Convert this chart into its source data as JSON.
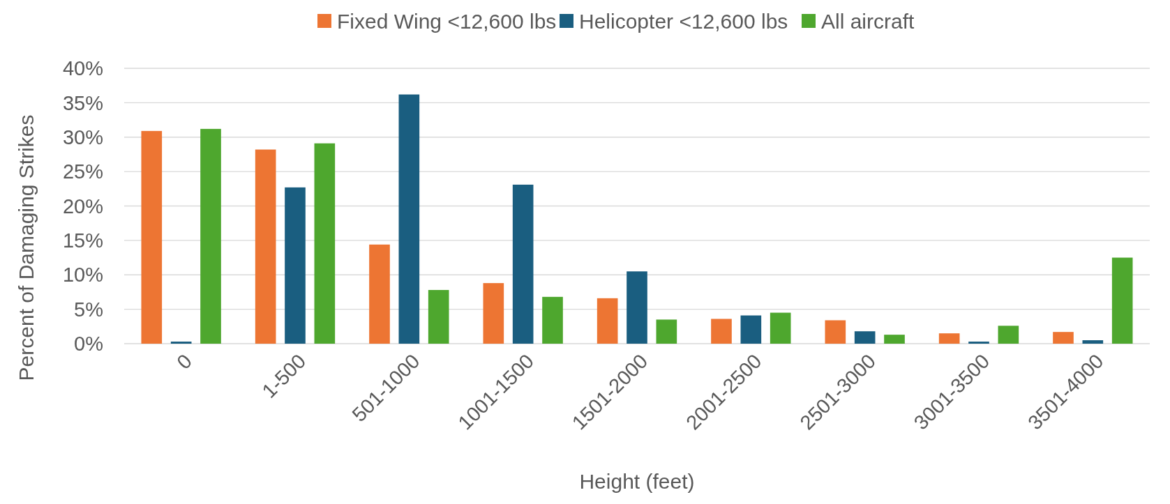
{
  "chart_data": {
    "type": "bar",
    "xlabel": "Height (feet)",
    "ylabel": "Percent of Damaging Strikes",
    "categories": [
      "0",
      "1-500",
      "501-1000",
      "1001-1500",
      "1501-2000",
      "2001-2500",
      "2501-3000",
      "3001-3500",
      "3501-4000"
    ],
    "series": [
      {
        "name": "Fixed Wing <12,600 lbs",
        "color": "#ed7533",
        "values": [
          30.9,
          28.2,
          14.4,
          8.8,
          6.6,
          3.6,
          3.4,
          1.5,
          1.7
        ]
      },
      {
        "name": "Helicopter <12,600 lbs",
        "color": "#1a5e80",
        "values": [
          0.3,
          22.7,
          36.2,
          23.1,
          10.5,
          4.1,
          1.8,
          0.3,
          0.5
        ]
      },
      {
        "name": "All aircraft",
        "color": "#4ea72e",
        "values": [
          31.2,
          29.1,
          7.8,
          6.8,
          3.5,
          4.5,
          1.3,
          2.6,
          12.5
        ]
      }
    ],
    "ylim": [
      0,
      40
    ],
    "yticks": [
      {
        "value": 0,
        "label": "0%"
      },
      {
        "value": 5,
        "label": "5%"
      },
      {
        "value": 10,
        "label": "10%"
      },
      {
        "value": 15,
        "label": "15%"
      },
      {
        "value": 20,
        "label": "20%"
      },
      {
        "value": 25,
        "label": "25%"
      },
      {
        "value": 30,
        "label": "30%"
      },
      {
        "value": 35,
        "label": "35%"
      },
      {
        "value": 40,
        "label": "40%"
      }
    ],
    "grid": "y",
    "legend": "top"
  }
}
